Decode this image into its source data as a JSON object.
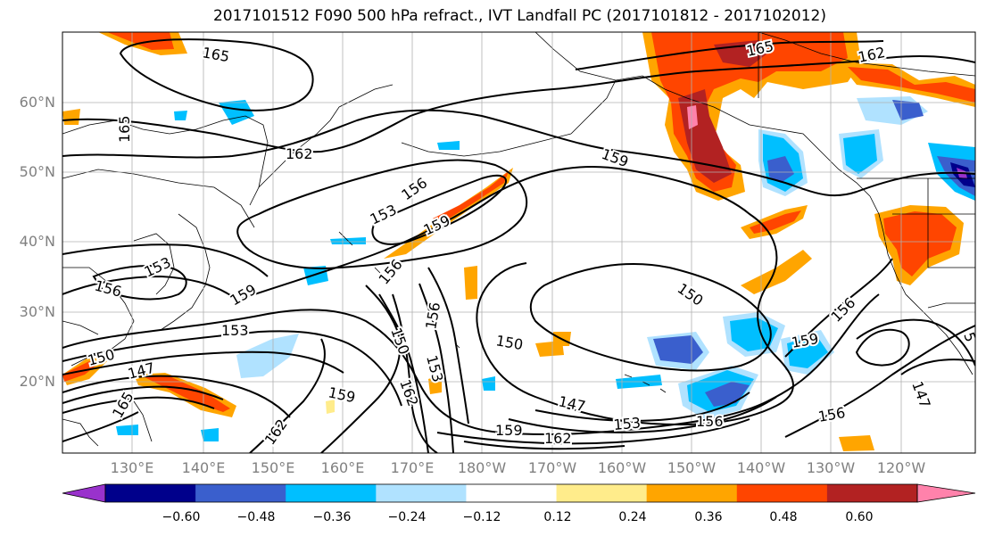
{
  "title": "2017101512 F090 500 hPa refract., IVT Landfall PC (2017101812 - 2017102012)",
  "lat_labels": [
    "60°N",
    "50°N",
    "40°N",
    "30°N",
    "20°N"
  ],
  "lon_labels": [
    "130°E",
    "140°E",
    "150°E",
    "160°E",
    "170°E",
    "180°W",
    "170°W",
    "160°W",
    "150°W",
    "140°W",
    "130°W",
    "120°W"
  ],
  "contour_labels": {
    "c165_a": "165",
    "c165_b": "165",
    "c165_c": "165",
    "c162_a": "162",
    "c162_b": "162",
    "c162_c": "162",
    "c162_d": "162",
    "c159_a": "159",
    "c159_b": "159",
    "c159_c": "159",
    "c159_d": "159",
    "c159_e": "159",
    "c159_f": "159",
    "c156_a": "156",
    "c156_b": "156",
    "c156_c": "156",
    "c156_d": "156",
    "c156_e": "156",
    "c156_f": "156",
    "c156_g": "156",
    "c153_a": "153",
    "c153_b": "153",
    "c153_c": "153",
    "c153_d": "153",
    "c153_e": "153",
    "c150_a": "150",
    "c150_b": "150",
    "c150_c": "150",
    "c150_d": "150",
    "c147_a": "147",
    "c147_b": "147",
    "c147_c": "147",
    "c5": "5"
  },
  "colorbar": {
    "labels": [
      "−0.60",
      "−0.48",
      "−0.36",
      "−0.24",
      "−0.12",
      "0.12",
      "0.24",
      "0.36",
      "0.48",
      "0.60"
    ],
    "colors": [
      "#9932cc",
      "#00008b",
      "#3a5fcd",
      "#00bfff",
      "#b0e2ff",
      "#ffffff",
      "#ffec8b",
      "#ffa500",
      "#ff4500",
      "#b22222",
      "#ff82ab"
    ]
  }
}
